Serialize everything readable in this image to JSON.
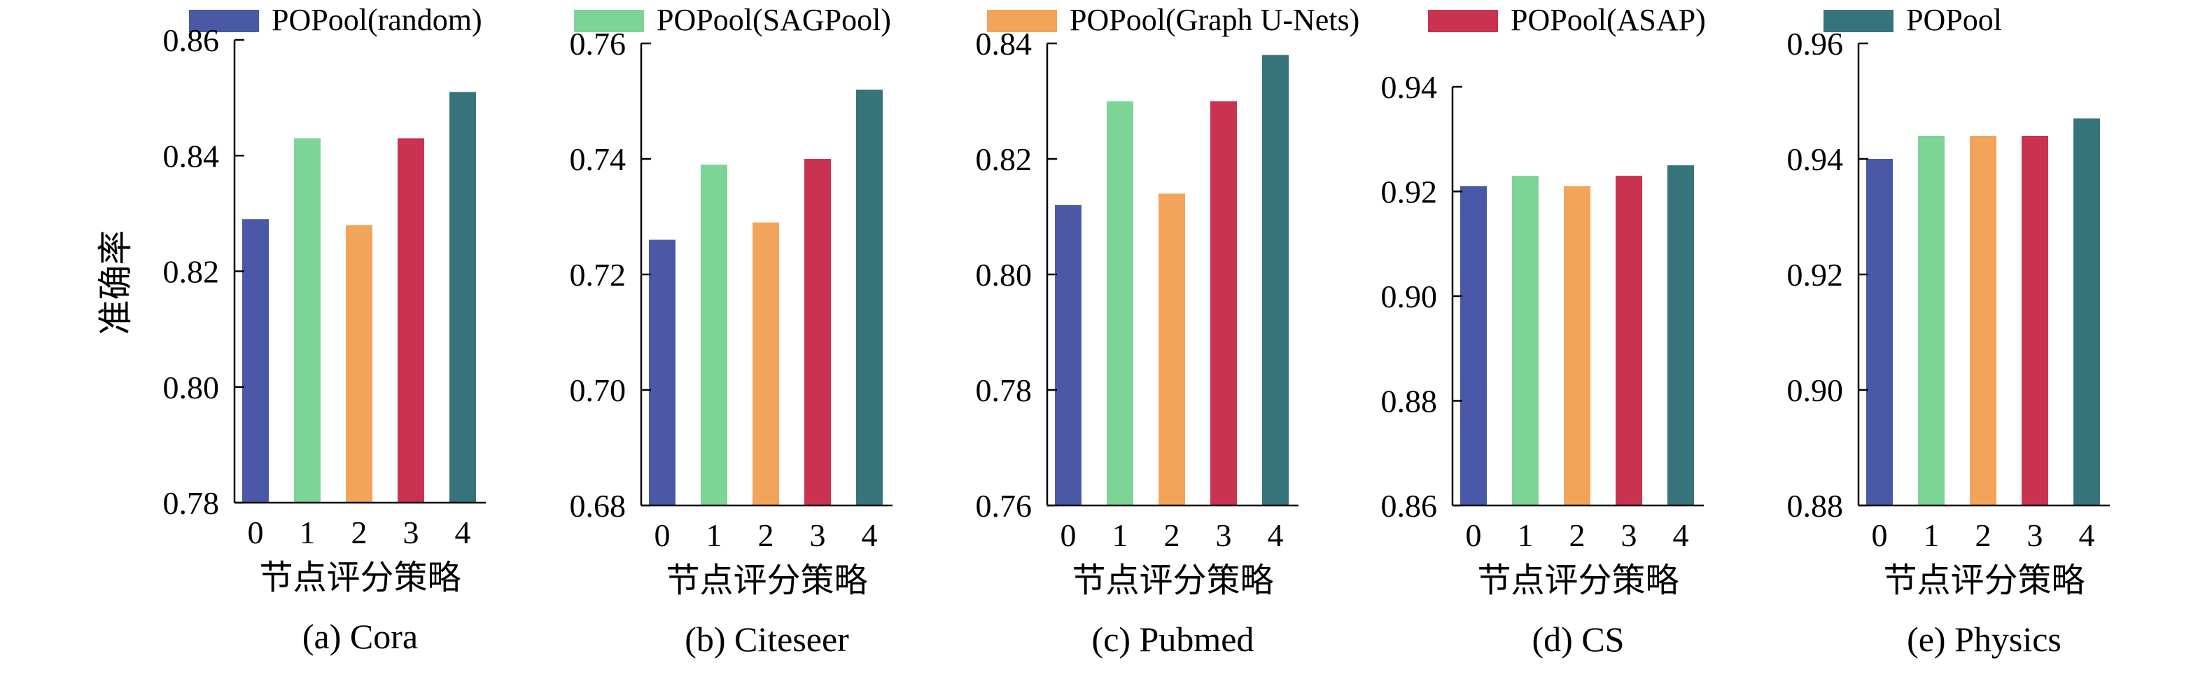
{
  "legend": {
    "entries": [
      {
        "name": "POPool(random)",
        "color": "#4a59a7"
      },
      {
        "name": "POPool(SAGPool)",
        "color": "#7dd497"
      },
      {
        "name": "POPool(Graph U-Nets)",
        "color": "#f3a45b"
      },
      {
        "name": "POPool(ASAP)",
        "color": "#c9334f"
      },
      {
        "name": "POPool",
        "color": "#37737b"
      }
    ]
  },
  "shared_ylabel": "准确率",
  "chart_data": [
    {
      "type": "bar",
      "title": "(a) Cora",
      "xlabel": "节点评分策略",
      "categories": [
        "0",
        "1",
        "2",
        "3",
        "4"
      ],
      "values": [
        0.829,
        0.843,
        0.828,
        0.843,
        0.851
      ],
      "ylim": [
        0.78,
        0.86
      ],
      "yticks": [
        "0.78",
        "0.80",
        "0.82",
        "0.84",
        "0.86"
      ],
      "ylabel": "准确率"
    },
    {
      "type": "bar",
      "title": "(b) Citeseer",
      "xlabel": "节点评分策略",
      "categories": [
        "0",
        "1",
        "2",
        "3",
        "4"
      ],
      "values": [
        0.726,
        0.739,
        0.729,
        0.74,
        0.752
      ],
      "ylim": [
        0.68,
        0.76
      ],
      "yticks": [
        "0.68",
        "0.70",
        "0.72",
        "0.74",
        "0.76"
      ],
      "ylabel": ""
    },
    {
      "type": "bar",
      "title": "(c) Pubmed",
      "xlabel": "节点评分策略",
      "categories": [
        "0",
        "1",
        "2",
        "3",
        "4"
      ],
      "values": [
        0.812,
        0.83,
        0.814,
        0.83,
        0.838
      ],
      "ylim": [
        0.76,
        0.84
      ],
      "yticks": [
        "0.76",
        "0.78",
        "0.80",
        "0.82",
        "0.84"
      ],
      "ylabel": ""
    },
    {
      "type": "bar",
      "title": "(d) CS",
      "xlabel": "节点评分策略",
      "categories": [
        "0",
        "1",
        "2",
        "3",
        "4"
      ],
      "values": [
        0.921,
        0.923,
        0.921,
        0.923,
        0.925
      ],
      "ylim": [
        0.86,
        0.94
      ],
      "yticks": [
        "0.86",
        "0.88",
        "0.90",
        "0.92",
        "0.94"
      ],
      "ylabel": ""
    },
    {
      "type": "bar",
      "title": "(e) Physics",
      "xlabel": "节点评分策略",
      "categories": [
        "0",
        "1",
        "2",
        "3",
        "4"
      ],
      "values": [
        0.94,
        0.944,
        0.944,
        0.944,
        0.947
      ],
      "ylim": [
        0.88,
        0.96
      ],
      "yticks": [
        "0.88",
        "0.90",
        "0.92",
        "0.94",
        "0.96"
      ],
      "ylabel": ""
    }
  ]
}
